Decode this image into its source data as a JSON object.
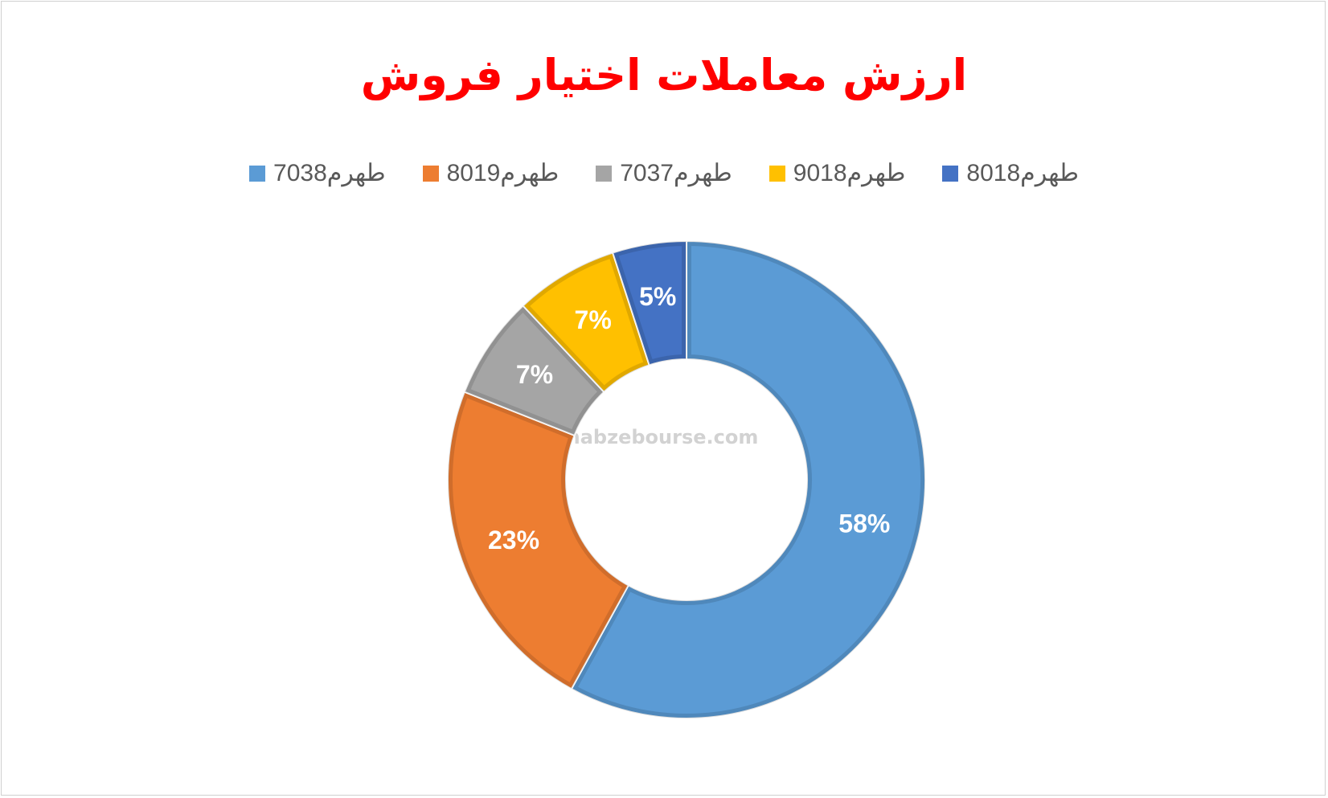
{
  "chart_data": {
    "type": "donut",
    "title": "ارزش معاملات اختیار فروش",
    "categories": [
      "طهرم7038",
      "طهرم8019",
      "طهرم7037",
      "طهرم9018",
      "طهرم8018"
    ],
    "values": [
      58,
      23,
      7,
      7,
      5
    ],
    "value_labels": [
      "58%",
      "23%",
      "7%",
      "7%",
      "5%"
    ],
    "colors": [
      "#5b9bd5",
      "#ed7d31",
      "#a5a5a5",
      "#ffc000",
      "#4472c4"
    ],
    "legend": "top",
    "watermark": "nabzebourse.com"
  }
}
